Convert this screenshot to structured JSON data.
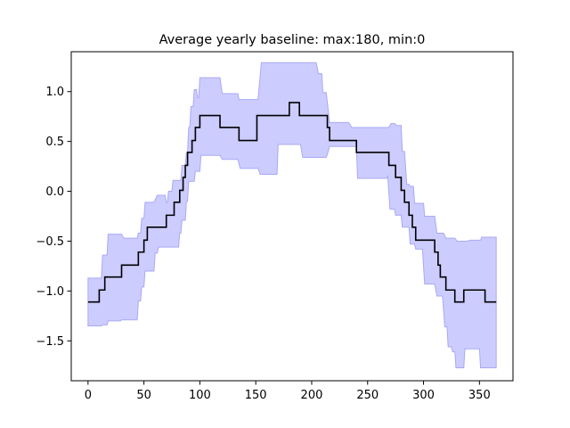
{
  "chart_data": {
    "type": "line",
    "title": "Average yearly baseline: max:180, min:0",
    "xlabel": "",
    "ylabel": "",
    "xlim": [
      -15,
      380
    ],
    "ylim": [
      -1.9,
      1.4
    ],
    "xticks": [
      0,
      50,
      100,
      150,
      200,
      250,
      300,
      350
    ],
    "yticks": [
      -1.5,
      -1.0,
      -0.5,
      0.0,
      0.5,
      1.0
    ],
    "ytick_labels": [
      "−1.5",
      "−1.0",
      "−0.5",
      "0.0",
      "0.5",
      "1.0"
    ],
    "grid": false,
    "colors": {
      "line": "#000000",
      "band_fill": "#ccccff",
      "band_edge": "#a9a9f5",
      "axes": "#000000"
    },
    "series": [
      {
        "kind": "step-line",
        "points": [
          [
            0,
            -1.11
          ],
          [
            10,
            -1.11
          ],
          [
            10,
            -0.99
          ],
          [
            15,
            -0.99
          ],
          [
            15,
            -0.86
          ],
          [
            30,
            -0.86
          ],
          [
            30,
            -0.74
          ],
          [
            45,
            -0.74
          ],
          [
            45,
            -0.61
          ],
          [
            50,
            -0.61
          ],
          [
            50,
            -0.49
          ],
          [
            53,
            -0.49
          ],
          [
            53,
            -0.36
          ],
          [
            70,
            -0.36
          ],
          [
            70,
            -0.24
          ],
          [
            77,
            -0.24
          ],
          [
            77,
            -0.11
          ],
          [
            82,
            -0.11
          ],
          [
            82,
            0.01
          ],
          [
            85,
            0.01
          ],
          [
            85,
            0.14
          ],
          [
            87,
            0.14
          ],
          [
            87,
            0.26
          ],
          [
            89,
            0.26
          ],
          [
            89,
            0.39
          ],
          [
            93,
            0.39
          ],
          [
            93,
            0.51
          ],
          [
            96,
            0.51
          ],
          [
            96,
            0.64
          ],
          [
            100,
            0.64
          ],
          [
            100,
            0.76
          ],
          [
            118,
            0.76
          ],
          [
            118,
            0.64
          ],
          [
            135,
            0.64
          ],
          [
            135,
            0.51
          ],
          [
            151,
            0.51
          ],
          [
            151,
            0.76
          ],
          [
            180,
            0.76
          ],
          [
            180,
            0.89
          ],
          [
            189,
            0.89
          ],
          [
            189,
            0.76
          ],
          [
            214,
            0.76
          ],
          [
            214,
            0.64
          ],
          [
            216,
            0.64
          ],
          [
            216,
            0.51
          ],
          [
            240,
            0.51
          ],
          [
            240,
            0.39
          ],
          [
            269,
            0.39
          ],
          [
            269,
            0.26
          ],
          [
            275,
            0.26
          ],
          [
            275,
            0.14
          ],
          [
            280,
            0.14
          ],
          [
            280,
            0.01
          ],
          [
            283,
            0.01
          ],
          [
            283,
            -0.11
          ],
          [
            287,
            -0.11
          ],
          [
            287,
            -0.24
          ],
          [
            290,
            -0.24
          ],
          [
            290,
            -0.36
          ],
          [
            293,
            -0.36
          ],
          [
            293,
            -0.49
          ],
          [
            310,
            -0.49
          ],
          [
            310,
            -0.61
          ],
          [
            313,
            -0.61
          ],
          [
            313,
            -0.74
          ],
          [
            315,
            -0.74
          ],
          [
            315,
            -0.86
          ],
          [
            320,
            -0.86
          ],
          [
            320,
            -0.99
          ],
          [
            328,
            -0.99
          ],
          [
            328,
            -1.11
          ],
          [
            336,
            -1.11
          ],
          [
            336,
            -0.99
          ],
          [
            355,
            -0.99
          ],
          [
            355,
            -1.11
          ],
          [
            365,
            -1.11
          ]
        ]
      },
      {
        "kind": "band",
        "upper": [
          [
            0,
            -0.87
          ],
          [
            12,
            -0.87
          ],
          [
            13,
            -0.64
          ],
          [
            17,
            -0.64
          ],
          [
            18,
            -0.43
          ],
          [
            30,
            -0.43
          ],
          [
            32,
            -0.47
          ],
          [
            44,
            -0.47
          ],
          [
            45,
            -0.42
          ],
          [
            47,
            -0.42
          ],
          [
            48,
            -0.27
          ],
          [
            50,
            -0.27
          ],
          [
            51,
            -0.11
          ],
          [
            59,
            -0.11
          ],
          [
            62,
            -0.04
          ],
          [
            69,
            -0.04
          ],
          [
            70,
            -0.11
          ],
          [
            71,
            -0.11
          ],
          [
            72,
            0.0
          ],
          [
            75,
            0.0
          ],
          [
            76,
            0.11
          ],
          [
            83,
            0.11
          ],
          [
            84,
            0.26
          ],
          [
            87,
            0.26
          ],
          [
            88,
            0.39
          ],
          [
            89,
            0.39
          ],
          [
            90,
            0.64
          ],
          [
            91,
            0.64
          ],
          [
            92,
            0.85
          ],
          [
            94,
            0.85
          ],
          [
            95,
            1.02
          ],
          [
            97,
            1.02
          ],
          [
            98,
            0.94
          ],
          [
            99,
            0.94
          ],
          [
            100,
            1.14
          ],
          [
            118,
            1.14
          ],
          [
            120,
            0.98
          ],
          [
            134,
            0.98
          ],
          [
            135,
            0.92
          ],
          [
            152,
            0.92
          ],
          [
            155,
            1.29
          ],
          [
            204,
            1.29
          ],
          [
            206,
            1.18
          ],
          [
            209,
            1.18
          ],
          [
            210,
            0.99
          ],
          [
            213,
            0.99
          ],
          [
            216,
            0.69
          ],
          [
            233,
            0.69
          ],
          [
            236,
            0.64
          ],
          [
            269,
            0.64
          ],
          [
            271,
            0.68
          ],
          [
            274,
            0.68
          ],
          [
            276,
            0.66
          ],
          [
            280,
            0.66
          ],
          [
            281,
            0.4
          ],
          [
            283,
            0.4
          ],
          [
            285,
            0.07
          ],
          [
            287,
            0.07
          ],
          [
            288,
            0.05
          ],
          [
            291,
            0.05
          ],
          [
            292,
            -0.12
          ],
          [
            300,
            -0.12
          ],
          [
            301,
            -0.25
          ],
          [
            310,
            -0.25
          ],
          [
            312,
            -0.42
          ],
          [
            318,
            -0.42
          ],
          [
            320,
            -0.47
          ],
          [
            328,
            -0.47
          ],
          [
            330,
            -0.5
          ],
          [
            339,
            -0.5
          ],
          [
            342,
            -0.49
          ],
          [
            351,
            -0.49
          ],
          [
            352,
            -0.46
          ],
          [
            365,
            -0.46
          ]
        ],
        "lower": [
          [
            0,
            -1.35
          ],
          [
            12,
            -1.35
          ],
          [
            13,
            -1.34
          ],
          [
            17,
            -1.34
          ],
          [
            18,
            -1.3
          ],
          [
            29,
            -1.3
          ],
          [
            30,
            -1.29
          ],
          [
            44,
            -1.29
          ],
          [
            45,
            -1.1
          ],
          [
            47,
            -1.1
          ],
          [
            48,
            -0.96
          ],
          [
            50,
            -0.96
          ],
          [
            51,
            -0.8
          ],
          [
            59,
            -0.8
          ],
          [
            60,
            -0.62
          ],
          [
            62,
            -0.62
          ],
          [
            63,
            -0.56
          ],
          [
            81,
            -0.56
          ],
          [
            82,
            -0.42
          ],
          [
            83,
            -0.42
          ],
          [
            84,
            -0.29
          ],
          [
            87,
            -0.29
          ],
          [
            88,
            -0.1
          ],
          [
            89,
            -0.1
          ],
          [
            90,
            0.1
          ],
          [
            95,
            0.1
          ],
          [
            96,
            0.2
          ],
          [
            100,
            0.2
          ],
          [
            101,
            0.36
          ],
          [
            118,
            0.36
          ],
          [
            120,
            0.32
          ],
          [
            134,
            0.32
          ],
          [
            136,
            0.23
          ],
          [
            152,
            0.23
          ],
          [
            154,
            0.17
          ],
          [
            169,
            0.17
          ],
          [
            170,
            0.47
          ],
          [
            190,
            0.47
          ],
          [
            192,
            0.34
          ],
          [
            213,
            0.34
          ],
          [
            214,
            0.37
          ],
          [
            216,
            0.45
          ],
          [
            240,
            0.45
          ],
          [
            241,
            0.13
          ],
          [
            267,
            0.13
          ],
          [
            268,
            0.15
          ],
          [
            270,
            -0.18
          ],
          [
            274,
            -0.18
          ],
          [
            275,
            -0.24
          ],
          [
            280,
            -0.24
          ],
          [
            281,
            -0.36
          ],
          [
            287,
            -0.36
          ],
          [
            288,
            -0.53
          ],
          [
            292,
            -0.53
          ],
          [
            293,
            -0.58
          ],
          [
            299,
            -0.58
          ],
          [
            301,
            -0.93
          ],
          [
            310,
            -0.93
          ],
          [
            312,
            -1.05
          ],
          [
            317,
            -1.05
          ],
          [
            319,
            -1.36
          ],
          [
            321,
            -1.36
          ],
          [
            322,
            -1.56
          ],
          [
            325,
            -1.56
          ],
          [
            326,
            -1.61
          ],
          [
            328,
            -1.61
          ],
          [
            329,
            -1.77
          ],
          [
            336,
            -1.77
          ],
          [
            337,
            -1.58
          ],
          [
            350,
            -1.58
          ],
          [
            351,
            -1.77
          ],
          [
            365,
            -1.77
          ]
        ]
      }
    ]
  }
}
